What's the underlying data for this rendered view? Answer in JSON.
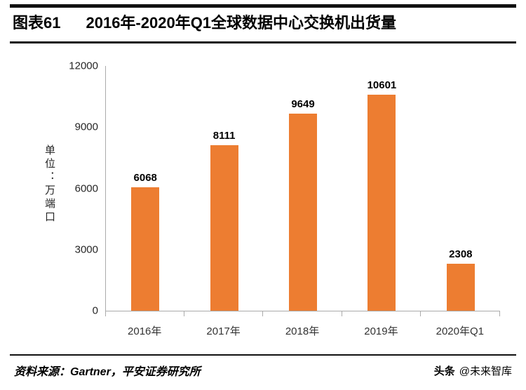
{
  "header": {
    "label": "图表61",
    "title": "2016年-2020年Q1全球数据中心交换机出货量"
  },
  "chart_data": {
    "type": "bar",
    "title": "2016年-2020年Q1全球数据中心交换机出货量",
    "categories": [
      "2016年",
      "2017年",
      "2018年",
      "2019年",
      "2020年Q1"
    ],
    "values": [
      6068,
      8111,
      9649,
      10601,
      2308
    ],
    "xlabel": "",
    "ylabel": "单位：万端口",
    "ylim": [
      0,
      12000
    ],
    "yticks": [
      0,
      3000,
      6000,
      9000,
      12000
    ],
    "bar_color": "#ED7D31",
    "grid": false,
    "legend_position": "none",
    "data_labels": true
  },
  "footer": {
    "source": "资料来源：Gartner，平安证券研究所",
    "watermark_brand": "头条",
    "watermark_handle": "@未来智库"
  },
  "colors": {
    "accent": "#ED7D31",
    "axis": "#ABABAB",
    "rule": "#000000"
  }
}
